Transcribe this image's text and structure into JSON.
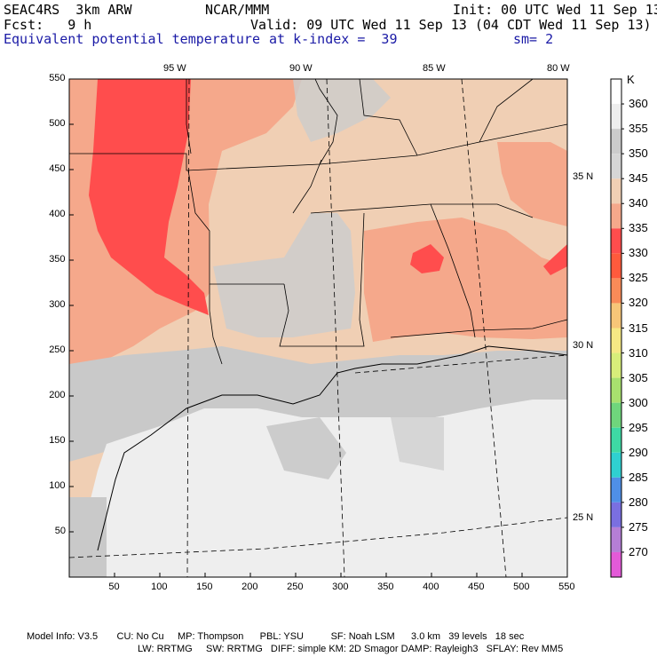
{
  "header": {
    "model": "SEAC4RS  3km ARW",
    "org": "NCAR/MMM",
    "init": "Init: 00 UTC Wed 11 Sep 13",
    "fcst": "Fcst:   9 h",
    "valid": "Valid: 09 UTC Wed 11 Sep 13 (04 CDT Wed 11 Sep 13)",
    "field": "Equivalent potential temperature",
    "level": "at k-index =  39",
    "smooth": "sm= 2"
  },
  "axes": {
    "x_ticks": [
      "50",
      "100",
      "150",
      "200",
      "250",
      "300",
      "350",
      "400",
      "450",
      "500",
      "550"
    ],
    "y_ticks": [
      "50",
      "100",
      "150",
      "200",
      "250",
      "300",
      "350",
      "400",
      "450",
      "500",
      "550"
    ],
    "lon_labels": [
      "95 W",
      "90 W",
      "85 W",
      "80 W"
    ],
    "lat_labels": [
      "35 N",
      "30 N",
      "25 N"
    ]
  },
  "legend": {
    "unit": "K",
    "levels": [
      "360",
      "355",
      "350",
      "345",
      "340",
      "335",
      "330",
      "325",
      "320",
      "315",
      "310",
      "305",
      "300",
      "295",
      "290",
      "285",
      "280",
      "275",
      "270"
    ],
    "colors": [
      "#ffffff",
      "#eeeeee",
      "#cccccc",
      "#d6d6d6",
      "#f0cfb4",
      "#f5a88b",
      "#ff4d4d",
      "#ff5a3c",
      "#f98b58",
      "#f7c678",
      "#f6e884",
      "#d8ee7a",
      "#a8e06e",
      "#6fd67c",
      "#3ed9a4",
      "#2fd0d0",
      "#4f8fe6",
      "#7a6fe0",
      "#b57ed6",
      "#e35ad8"
    ]
  },
  "footer": {
    "line1": "Model Info: V3.5       CU: No Cu     MP: Thompson      PBL: YSU          SF: Noah LSM      3.0 km   39 levels   18 sec",
    "line2": "LW: RRTMG     SW: RRTMG   DIFF: simple KM: 2D Smagor DAMP: Rayleigh3   SFLAY: Rev MM5"
  },
  "colors": {
    "gulf": "#eeeeee",
    "gulf_mid": "#c9c9c9",
    "land_tan": "#f0cfb4",
    "land_salmon": "#f5a88b",
    "land_red": "#ff4d4d",
    "gray_land": "#cccccc"
  }
}
